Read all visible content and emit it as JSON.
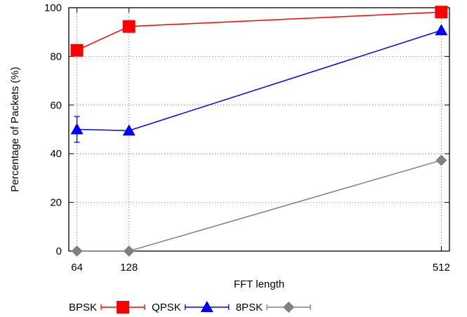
{
  "chart_data": {
    "type": "line",
    "x": [
      64,
      128,
      512
    ],
    "xticks": [
      64,
      128,
      512
    ],
    "xlabel": "FFT length",
    "ylabel": "Percentage of Packets (%)",
    "ylim": [
      0,
      100
    ],
    "yticks": [
      0,
      20,
      40,
      60,
      80,
      100
    ],
    "grid": true,
    "legend_position": "bottom-left",
    "series": [
      {
        "name": "BPSK",
        "values": [
          82.5,
          92.3,
          98.2
        ],
        "error": [
          0,
          0,
          0
        ],
        "color": "#ff0000",
        "marker": "square"
      },
      {
        "name": "QPSK",
        "values": [
          50.0,
          49.5,
          90.7
        ],
        "error": [
          5.3,
          0,
          0
        ],
        "color": "#0000ff",
        "marker": "triangle"
      },
      {
        "name": "8PSK",
        "values": [
          0.0,
          0.0,
          37.3
        ],
        "error": [
          0,
          0,
          0
        ],
        "color": "#808080",
        "marker": "diamond"
      }
    ]
  }
}
